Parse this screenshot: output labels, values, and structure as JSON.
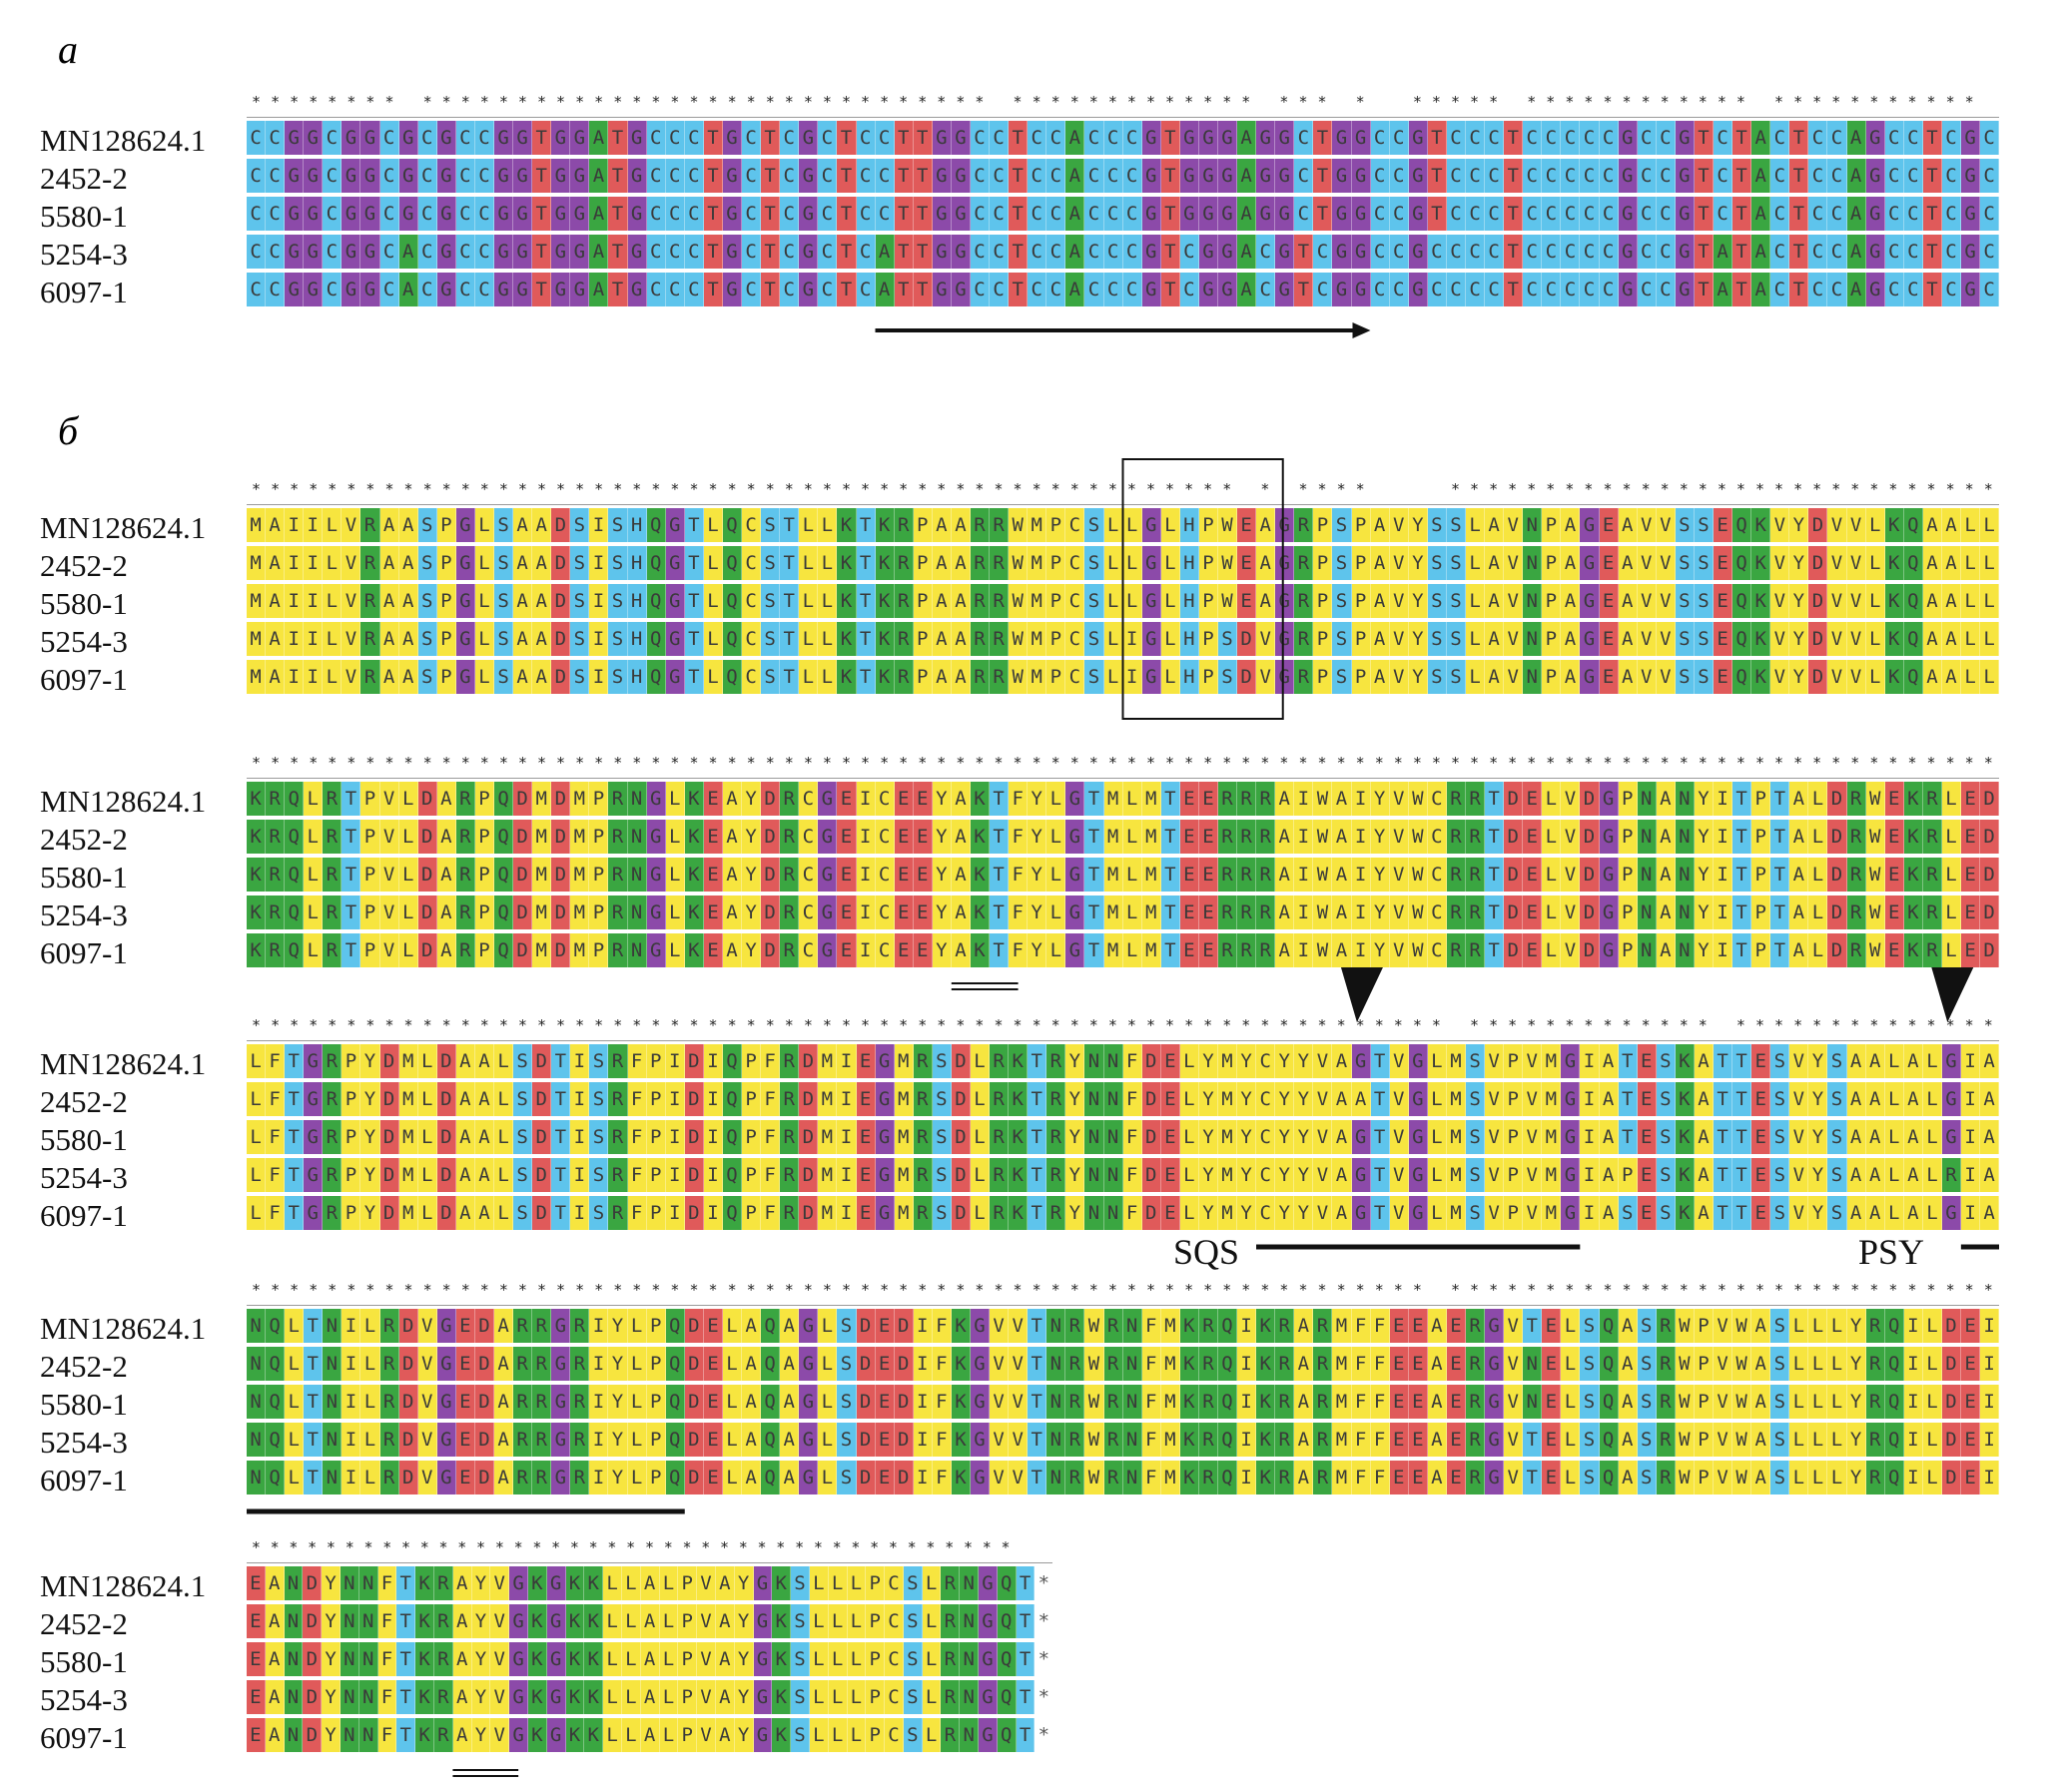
{
  "panel_a": {
    "label": "а",
    "names": [
      "MN128624.1",
      "2452-2",
      "5580-1",
      "5254-3",
      "6097-1"
    ],
    "consensus": "******** ****************************** ************* *** *  ***** ************ ***********",
    "sequences": [
      "CCGGCGGCGCGCCGGTGGATGCCCTGCTCGCTCCTTGGCCTCCACCCGTGGGAGGCTGGCCGTCCCTCCCCCGCCGTCTACTCCAGCCTCGC",
      "CCGGCGGCGCGCCGGTGGATGCCCTGCTCGCTCCTTGGCCTCCACCCGTGGGAGGCTGGCCGTCCCTCCCCCGCCGTCTACTCCAGCCTCGC",
      "CCGGCGGCGCGCCGGTGGATGCCCTGCTCGCTCCTTGGCCTCCACCCGTGGGAGGCTGGCCGTCCCTCCCCCGCCGTCTACTCCAGCCTCGC",
      "CCGGCGGCACGCCGGTGGATGCCCTGCTCGCTCATTGGCCTCCACCCGTCGGACGTCGGCCGCCCCTCCCCCGCCGTATACTCCAGCCTCGC",
      "CCGGCGGCACGCCGGTGGATGCCCTGCTCGCTCATTGGCCTCCACCCGTCGGACGTCGGCCGCCCCTCCCCCGCCGTATACTCCAGCCTCGC"
    ]
  },
  "panel_b": {
    "label": "б",
    "names": [
      "MN128624.1",
      "2452-2",
      "5580-1",
      "5254-3",
      "6097-1"
    ],
    "blocks": [
      {
        "consensus": "**************************************************** * ****    ***********************************",
        "sequences": [
          "MAIILVRAASPGLSAADSISHQGTLQCSTLLKTKRPAARRWMPCSLLGLHPWEAGRPSPAVYSSLAVNPAGEAVVSSEQKVYDVVLKQAALL",
          "MAIILVRAASPGLSAADSISHQGTLQCSTLLKTKRPAARRWMPCSLLGLHPWEAGRPSPAVYSSLAVNPAGEAVVSSEQKVYDVVLKQAALL",
          "MAIILVRAASPGLSAADSISHQGTLQCSTLLKTKRPAARRWMPCSLLGLHPWEAGRPSPAVYSSLAVNPAGEAVVSSEQKVYDVVLKQAALL",
          "MAIILVRAASPGLSAADSISHQGTLQCSTLLKTKRPAARRWMPCSLIGLHPSDVGRPSPAVYSSLAVNPAGEAVVSSEQKVYDVVLKQAALL",
          "MAIILVRAASPGLSAADSISHQGTLQCSTLLKTKRPAARRWMPCSLIGLHPSDVGRPSPAVYSSLAVNPAGEAVVSSEQKVYDVVLKQAALL"
        ]
      },
      {
        "consensus": "**********************************************************************************************",
        "sequences": [
          "KRQLRTPVLDARPQDMDMPRNGLKEAYDRCGEICEEYAKTFYLGTMLMTEERRRAIWAIYVWCRRTDELVDGPNANYITPTALDRWEKRLED",
          "KRQLRTPVLDARPQDMDMPRNGLKEAYDRCGEICEEYAKTFYLGTMLMTEERRRAIWAIYVWCRRTDELVDGPNANYITPTALDRWEKRLED",
          "KRQLRTPVLDARPQDMDMPRNGLKEAYDRCGEICEEYAKTFYLGTMLMTEERRRAIWAIYVWCRRTDELVDGPNANYITPTALDRWEKRLED",
          "KRQLRTPVLDARPQDMDMPRNGLKEAYDRCGEICEEYAKTFYLGTMLMTEERRRAIWAIYVWCRRTDELVDGPNANYITPTALDRWEKRLED",
          "KRQLRTPVLDARPQDMDMPRNGLKEAYDRCGEICEEYAKTFYLGTMLMTEERRRAIWAIYVWCRRTDELVDGPNANYITPTALDRWEKRLED"
        ]
      },
      {
        "consensus": "*************************************************************** ************* *************** **",
        "sequences": [
          "LFTGRPYDMLDAALSDTISRFPIDIQPFRDMIEGMRSDLRKTRYNNFDELYMYCYYVAGTVGLMSVPVMGIATESKATTESVYSAALALGIA",
          "LFTGRPYDMLDAALSDTISRFPIDIQPFRDMIEGMRSDLRKTRYNNFDELYMYCYYVAATVGLMSVPVMGIATESKATTESVYSAALALGIA",
          "LFTGRPYDMLDAALSDTISRFPIDIQPFRDMIEGMRSDLRKTRYNNFDELYMYCYYVAGTVGLMSVPVMGIATESKATTESVYSAALALGIA",
          "LFTGRPYDMLDAALSDTISRFPIDIQPFRDMIEGMRSDLRKTRYNNFDELYMYCYYVAGTVGLMSVPVMGIAPESKATTESVYSAALALRIA",
          "LFTGRPYDMLDAALSDTISRFPIDIQPFRDMIEGMRSDLRKTRYNNFDELYMYCYYVAGTVGLMSVPVMGIASESKATTESVYSAALALGIA"
        ]
      },
      {
        "consensus": "************************************************************** *******************************",
        "sequences": [
          "NQLTNILRDVGEDARRGRIYLPQDELAQAGLSDEDIFKGVVTNRWRNFMKRQIKRARMFFEEAERGVTELSQASRWPVWASLLLYRQILDEI",
          "NQLTNILRDVGEDARRGRIYLPQDELAQAGLSDEDIFKGVVTNRWRNFMKRQIKRARMFFEEAERGVNELSQASRWPVWASLLLYRQILDEI",
          "NQLTNILRDVGEDARRGRIYLPQDELAQAGLSDEDIFKGVVTNRWRNFMKRQIKRARMFFEEAERGVNELSQASRWPVWASLLLYRQILDEI",
          "NQLTNILRDVGEDARRGRIYLPQDELAQAGLSDEDIFKGVVTNRWRNFMKRQIKRARMFFEEAERGVTELSQASRWPVWASLLLYRQILDEI",
          "NQLTNILRDVGEDARRGRIYLPQDELAQAGLSDEDIFKGVVTNRWRNFMKRQIKRARMFFEEAERGVTELSQASRWPVWASLLLYRQILDEI"
        ]
      },
      {
        "consensus": "*****************************************",
        "sequences": [
          "EANDYNNFTKRAYVGKGKKLLALPVAYGKSLLLPCSLRNGQT*",
          "EANDYNNFTKRAYVGKGKKLLALPVAYGKSLLLPCSLRNGQT*",
          "EANDYNNFTKRAYVGKGKKLLALPVAYGKSLLLPCSLRNGQT*",
          "EANDYNNFTKRAYVGKGKKLLALPVAYGKSLLLPCSLRNGQT*",
          "EANDYNNFTKRAYVGKGKKLLALPVAYGKSLLLPCSLRNGQT*"
        ]
      }
    ],
    "annotations": {
      "sqs_label": "SQS",
      "psy_label": "PSY"
    }
  },
  "colors": {
    "nucleotide": {
      "A": "#3aa641",
      "C": "#5ec4ec",
      "G": "#8c4aa9",
      "T": "#e05a5a"
    },
    "amino_acid": {
      "A": "#f7e53f",
      "I": "#f7e53f",
      "L": "#f7e53f",
      "M": "#f7e53f",
      "F": "#f7e53f",
      "V": "#f7e53f",
      "P": "#f7e53f",
      "W": "#f7e53f",
      "C": "#f7e53f",
      "Y": "#f7e53f",
      "S": "#5ec4ec",
      "T": "#5ec4ec",
      "H": "#5ec4ec",
      "N": "#3aa641",
      "Q": "#3aa641",
      "K": "#3aa641",
      "R": "#3aa641",
      "D": "#e05a5a",
      "E": "#e05a5a",
      "G": "#8c4aa9",
      "*": "#ffffff"
    }
  }
}
